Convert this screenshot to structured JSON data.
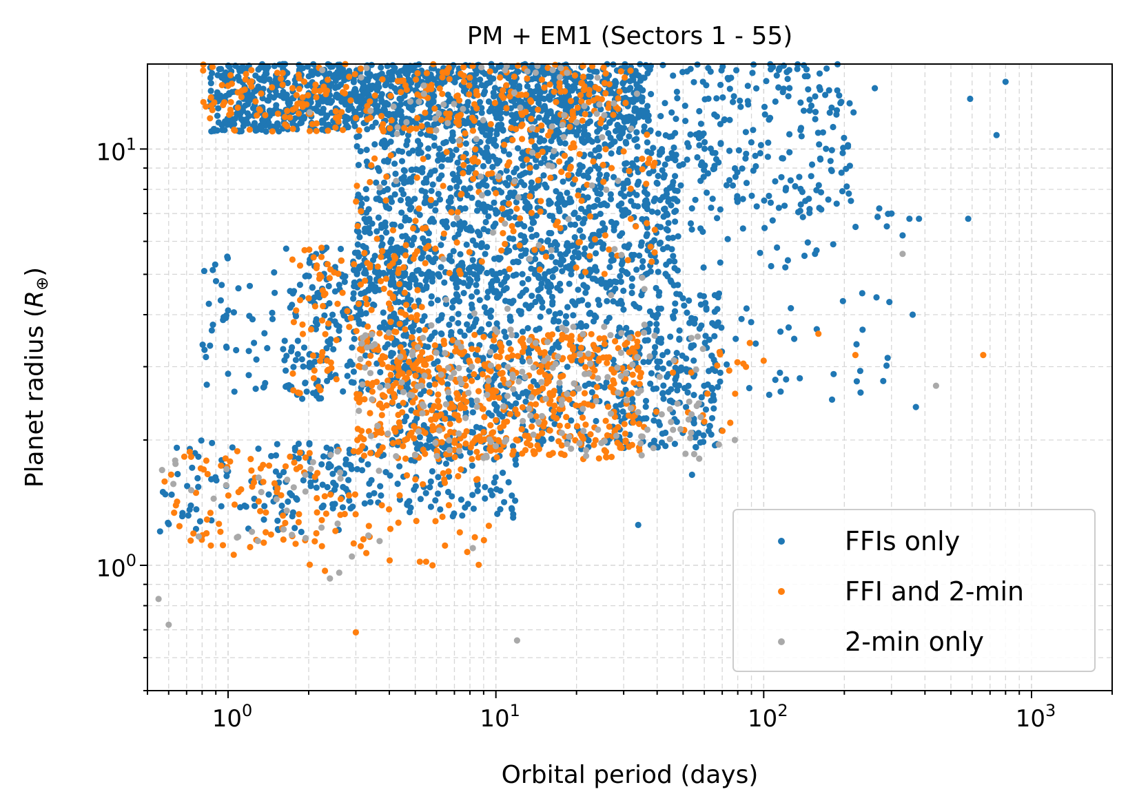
{
  "chart_data": {
    "type": "scatter",
    "title": "PM + EM1 (Sectors 1 - 55)",
    "xlabel": "Orbital period (days)",
    "ylabel_main": "Planet radius (",
    "ylabel_symbol": "R",
    "ylabel_sub": "⊕",
    "ylabel_close": ")",
    "xscale": "log",
    "yscale": "log",
    "xlim": [
      0.5,
      2000
    ],
    "ylim": [
      0.5,
      16
    ],
    "x_ticks": [
      {
        "value": 1,
        "base": "10",
        "exp": "0"
      },
      {
        "value": 10,
        "base": "10",
        "exp": "1"
      },
      {
        "value": 100,
        "base": "10",
        "exp": "2"
      },
      {
        "value": 1000,
        "base": "10",
        "exp": "3"
      }
    ],
    "y_ticks": [
      {
        "value": 1,
        "base": "10",
        "exp": "0"
      },
      {
        "value": 10,
        "base": "10",
        "exp": "1"
      }
    ],
    "grid": true,
    "legend_position": "lower-right",
    "series": [
      {
        "name": "FFIs only",
        "color": "#1f77b4",
        "clusters": [
          {
            "x": [
              0.85,
              38
            ],
            "y": [
              11.0,
              16.0
            ],
            "n": 1300
          },
          {
            "x": [
              3.0,
              48
            ],
            "y": [
              4.5,
              11.0
            ],
            "n": 1100
          },
          {
            "x": [
              1.6,
              5.0
            ],
            "y": [
              2.5,
              5.8
            ],
            "n": 260
          },
          {
            "x": [
              4.0,
              70
            ],
            "y": [
              1.9,
              4.5
            ],
            "n": 700
          },
          {
            "x": [
              0.55,
              3.0
            ],
            "y": [
              1.2,
              2.0
            ],
            "n": 90
          },
          {
            "x": [
              1.5,
              12
            ],
            "y": [
              1.3,
              2.0
            ],
            "n": 160
          },
          {
            "x": [
              0.75,
              1.5
            ],
            "y": [
              2.6,
              5.8
            ],
            "n": 45
          },
          {
            "x": [
              40,
              220
            ],
            "y": [
              7.0,
              16.0
            ],
            "n": 240
          },
          {
            "x": [
              40,
              300
            ],
            "y": [
              2.5,
              7.0
            ],
            "n": 70
          }
        ],
        "points": [
          [
            260,
            14.0
          ],
          [
            590,
            13.2
          ],
          [
            800,
            14.5
          ],
          [
            740,
            10.8
          ],
          [
            350,
            6.8
          ],
          [
            380,
            6.8
          ],
          [
            580,
            6.8
          ],
          [
            360,
            4.0
          ],
          [
            370,
            2.4
          ],
          [
            130,
            3.5
          ],
          [
            180,
            2.5
          ],
          [
            230,
            2.6
          ],
          [
            270,
            7.2
          ],
          [
            300,
            7.0
          ],
          [
            330,
            6.2
          ],
          [
            115,
            2.9
          ],
          [
            34,
            1.25
          ],
          [
            54,
            1.65
          ]
        ]
      },
      {
        "name": "FFI and 2-min",
        "color": "#ff7f0e",
        "clusters": [
          {
            "x": [
              0.8,
              33
            ],
            "y": [
              11.0,
              16.0
            ],
            "n": 290
          },
          {
            "x": [
              3.0,
              40
            ],
            "y": [
              5.0,
              11.0
            ],
            "n": 150
          },
          {
            "x": [
              1.7,
              5.5
            ],
            "y": [
              2.4,
              5.8
            ],
            "n": 140
          },
          {
            "x": [
              3.0,
              35
            ],
            "y": [
              1.8,
              3.6
            ],
            "n": 560
          },
          {
            "x": [
              0.55,
              3.0
            ],
            "y": [
              1.1,
              1.9
            ],
            "n": 90
          },
          {
            "x": [
              2.0,
              10
            ],
            "y": [
              1.0,
              1.7
            ],
            "n": 40
          },
          {
            "x": [
              35,
              90
            ],
            "y": [
              2.0,
              3.5
            ],
            "n": 20
          }
        ],
        "points": [
          [
            660,
            3.2
          ],
          [
            220,
            3.2
          ],
          [
            160,
            3.6
          ],
          [
            100,
            3.1
          ],
          [
            75,
            2.2
          ],
          [
            3.0,
            0.69
          ],
          [
            2.3,
            0.97
          ],
          [
            5.2,
            1.02
          ],
          [
            5.8,
            1.0
          ],
          [
            1.05,
            1.06
          ]
        ]
      },
      {
        "name": "2-min only",
        "color": "#a9a9a9",
        "clusters": [
          {
            "x": [
              2.0,
              40
            ],
            "y": [
              11.0,
              16.0
            ],
            "n": 45
          },
          {
            "x": [
              3.0,
              40
            ],
            "y": [
              4.0,
              11.0
            ],
            "n": 35
          },
          {
            "x": [
              3.0,
              60
            ],
            "y": [
              1.8,
              3.8
            ],
            "n": 190
          },
          {
            "x": [
              0.55,
              4.0
            ],
            "y": [
              1.1,
              1.9
            ],
            "n": 35
          }
        ],
        "points": [
          [
            330,
            5.6
          ],
          [
            440,
            2.7
          ],
          [
            78,
            2.0
          ],
          [
            68,
            1.95
          ],
          [
            55,
            1.85
          ],
          [
            0.55,
            0.83
          ],
          [
            0.6,
            0.72
          ],
          [
            2.4,
            0.93
          ],
          [
            2.6,
            0.96
          ],
          [
            12,
            0.66
          ],
          [
            8.2,
            1.1
          ],
          [
            2.9,
            1.05
          ]
        ]
      }
    ]
  }
}
